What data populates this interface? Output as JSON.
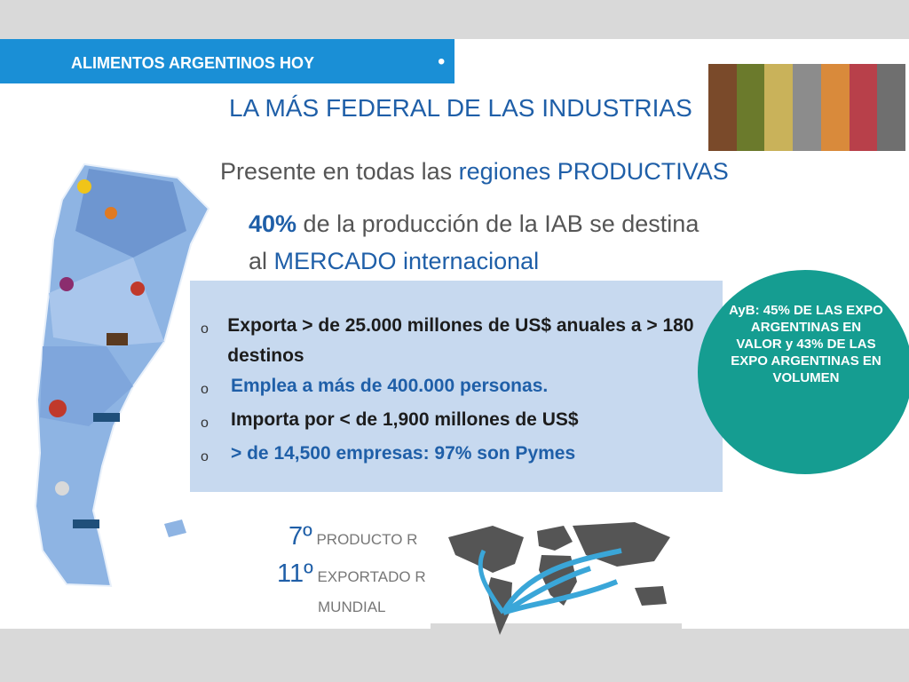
{
  "header": {
    "label": "ALIMENTOS ARGENTINOS HOY"
  },
  "title": "LA MÁS FEDERAL DE LAS INDUSTRIAS",
  "subtitle": {
    "prefix": "Presente en todas las ",
    "highlight": "regiones PRODUCTIVAS"
  },
  "export_share": {
    "percent": "40%",
    "text1": " de la producción de la IAB se destina",
    "text2_prefix": "al ",
    "text2_highlight": "MERCADO internacional"
  },
  "bullets": [
    {
      "mark": "o",
      "text": "Exporta > de 25.000 millones de US$ anuales a > 180 destinos",
      "style": "dark"
    },
    {
      "mark": "o",
      "text": "Emplea a más de 400.000 personas.",
      "style": "blue"
    },
    {
      "mark": "o",
      "text": "Importa por < de 1,900 millones de US$",
      "style": "dark"
    },
    {
      "mark": "o",
      "text": "> de 14,500 empresas: 97% son Pymes",
      "style": "blue"
    }
  ],
  "callout": "AyB: 45% DE LAS EXPO ARGENTINAS EN VALOR y 43% DE LAS EXPO ARGENTINAS EN VOLUMEN",
  "ranking": {
    "producer_rank": "7º",
    "producer_label": "PRODUCTO R",
    "exporter_rank": "11º",
    "exporter_label": "EXPORTADO R",
    "world_label": "MUNDIAL"
  },
  "colors": {
    "accent_blue": "#1a8fd6",
    "text_blue": "#1f5fa8",
    "box_fill": "#c7d9ef",
    "callout_teal": "#159d91",
    "band_grey": "#d9d9d9"
  },
  "icons": [
    "argentina-map-icon",
    "world-map-icon",
    "food-photo-strip"
  ]
}
